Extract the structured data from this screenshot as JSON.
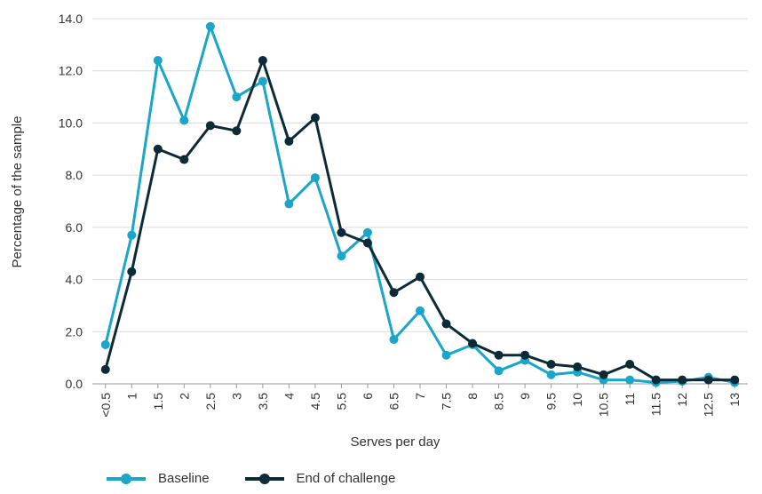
{
  "chart_data": {
    "type": "line",
    "title": "",
    "xlabel": "Serves per day",
    "ylabel": "Percentage of the sample",
    "categories": [
      "<0.5",
      "1",
      "1.5",
      "2",
      "2.5",
      "3",
      "3.5",
      "4",
      "4.5",
      "5.5",
      "6",
      "6.5",
      "7",
      "7.5",
      "8",
      "8.5",
      "9",
      "9.5",
      "10",
      "10.5",
      "11",
      "11.5",
      "12",
      "12.5",
      "13"
    ],
    "ylim": [
      0,
      14
    ],
    "yticks": [
      "0.0",
      "2.0",
      "4.0",
      "6.0",
      "8.0",
      "10.0",
      "12.0",
      "14.0"
    ],
    "grid": true,
    "legend_position": "bottom-left",
    "series": [
      {
        "name": "Baseline",
        "color": "#1aa6c8",
        "values": [
          1.5,
          5.7,
          12.4,
          10.1,
          13.7,
          11.0,
          11.6,
          6.9,
          7.9,
          4.9,
          5.8,
          1.7,
          2.8,
          1.1,
          1.5,
          0.5,
          0.9,
          0.35,
          0.45,
          0.15,
          0.15,
          0.05,
          0.1,
          0.25,
          0.05
        ]
      },
      {
        "name": "End of challenge",
        "color": "#0d2b36",
        "values": [
          0.55,
          4.3,
          9.0,
          8.6,
          9.9,
          9.7,
          12.4,
          9.3,
          10.2,
          5.8,
          5.4,
          3.5,
          4.1,
          2.3,
          1.55,
          1.1,
          1.1,
          0.75,
          0.65,
          0.35,
          0.75,
          0.15,
          0.15,
          0.15,
          0.15
        ]
      }
    ]
  }
}
